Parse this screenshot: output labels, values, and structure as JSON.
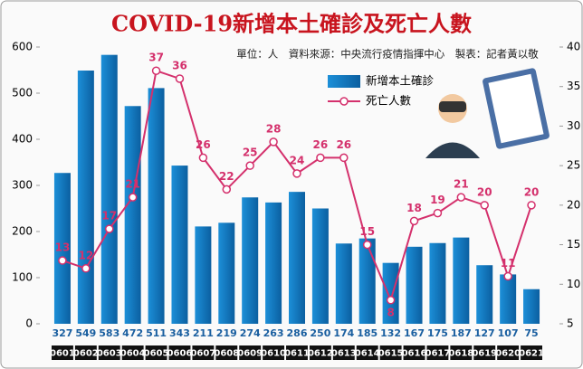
{
  "chart_data": {
    "type": "bar",
    "title": "COVID-19新增本土確診及死亡人數",
    "subtitle": "單位：人　資料來源：中央流行疫情指揮中心　製表：記者黃以敬",
    "categories": [
      "0601",
      "0602",
      "0603",
      "0604",
      "0605",
      "0606",
      "0607",
      "0608",
      "0609",
      "0610",
      "0611",
      "0612",
      "0613",
      "0614",
      "0615",
      "0616",
      "0617",
      "0618",
      "0619",
      "0620",
      "0621"
    ],
    "series": [
      {
        "name": "新增本土確診",
        "type": "bar",
        "color": "#1c8fd8",
        "values": [
          327,
          549,
          583,
          472,
          511,
          343,
          211,
          219,
          274,
          263,
          286,
          250,
          174,
          185,
          132,
          167,
          175,
          187,
          127,
          107,
          75
        ]
      },
      {
        "name": "死亡人數",
        "type": "line",
        "axis": "y2",
        "color": "#d4306c",
        "values": [
          13,
          12,
          17,
          21,
          37,
          36,
          26,
          22,
          25,
          28,
          24,
          26,
          26,
          15,
          8,
          18,
          19,
          21,
          20,
          11,
          20
        ]
      }
    ],
    "ylim": [
      0,
      600
    ],
    "yticks": [
      0,
      100,
      200,
      300,
      400,
      500,
      600
    ],
    "y2lim": [
      5,
      40
    ],
    "y2ticks": [
      5,
      10,
      15,
      20,
      25,
      30,
      35,
      40
    ],
    "grid": false
  }
}
